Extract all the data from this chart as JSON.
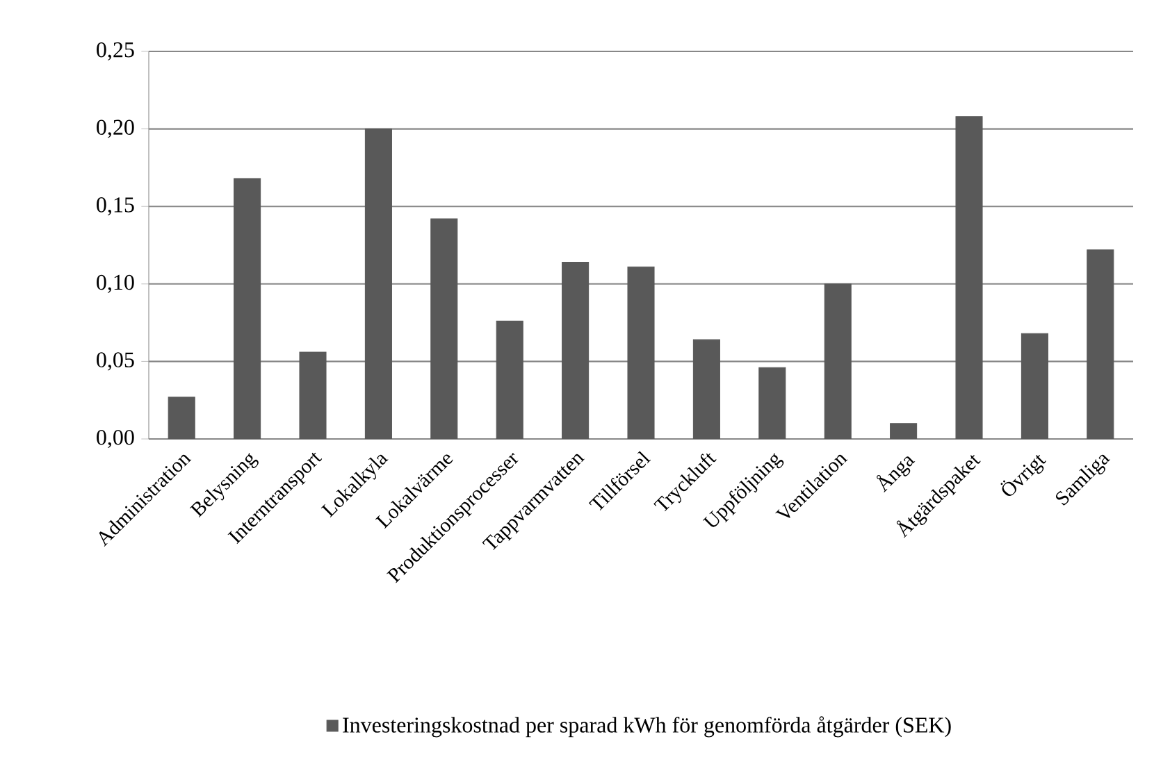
{
  "chart_data": {
    "type": "bar",
    "categories": [
      "Administration",
      "Belysning",
      "Interntransport",
      "Lokalkyla",
      "Lokalvärme",
      "Produktionsprocesser",
      "Tappvarmvatten",
      "Tillförsel",
      "Tryckluft",
      "Uppföljning",
      "Ventilation",
      "Ånga",
      "Åtgärdspaket",
      "Övrigt",
      "Samliga"
    ],
    "series": [
      {
        "name": "Investeringskostnad per sparad kWh för genomförda åtgärder (SEK)",
        "color": "#595959",
        "values": [
          0.027,
          0.168,
          0.056,
          0.2,
          0.142,
          0.076,
          0.114,
          0.111,
          0.064,
          0.046,
          0.1,
          0.01,
          0.208,
          0.068,
          0.122
        ]
      }
    ],
    "ylim": [
      0,
      0.25
    ],
    "yticks": [
      {
        "value": 0,
        "label": "0,00"
      },
      {
        "value": 0.05,
        "label": "0,05"
      },
      {
        "value": 0.1,
        "label": "0,10"
      },
      {
        "value": 0.15,
        "label": "0,15"
      },
      {
        "value": 0.2,
        "label": "0,20"
      },
      {
        "value": 0.25,
        "label": "0,25"
      }
    ],
    "grid": "y",
    "legend": "bottom"
  }
}
